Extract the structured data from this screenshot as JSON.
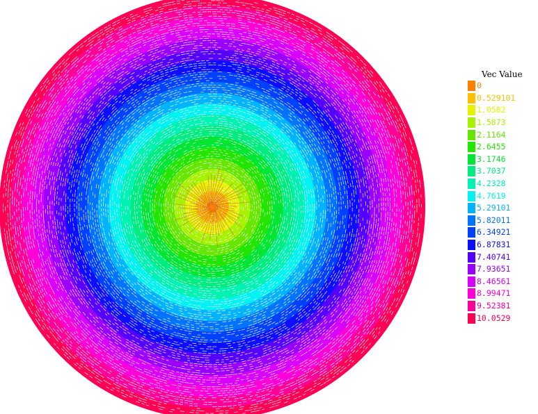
{
  "chart_data": {
    "type": "vector-field",
    "legend": {
      "title": "Vec Value",
      "position": "right",
      "entries": [
        {
          "label": "0",
          "color": "#ff8000"
        },
        {
          "label": "0.529101",
          "color": "#ffbf00"
        },
        {
          "label": "1.0582",
          "color": "#e6f200"
        },
        {
          "label": "1.5873",
          "color": "#a6f200"
        },
        {
          "label": "2.1164",
          "color": "#66e600"
        },
        {
          "label": "2.6455",
          "color": "#22e600"
        },
        {
          "label": "3.1746",
          "color": "#00e633"
        },
        {
          "label": "3.7037",
          "color": "#00ec80"
        },
        {
          "label": "4.2328",
          "color": "#00f2b3"
        },
        {
          "label": "4.7619",
          "color": "#00f2f2"
        },
        {
          "label": "5.29101",
          "color": "#00b3ff"
        },
        {
          "label": "5.82011",
          "color": "#0073ff"
        },
        {
          "label": "6.34921",
          "color": "#0040ff"
        },
        {
          "label": "6.87831",
          "color": "#0d0dff"
        },
        {
          "label": "7.40741",
          "color": "#5500ff"
        },
        {
          "label": "7.93651",
          "color": "#9900ff"
        },
        {
          "label": "8.46561",
          "color": "#d900ff"
        },
        {
          "label": "8.99471",
          "color": "#ff00d9"
        },
        {
          "label": "9.52381",
          "color": "#ff0099"
        },
        {
          "label": "10.0529",
          "color": "#ff0055"
        }
      ]
    },
    "field": {
      "shape": "disk",
      "rotation": "counter-clockwise",
      "magnitude_center": 0,
      "magnitude_edge": 10.0529
    },
    "grid": false
  }
}
